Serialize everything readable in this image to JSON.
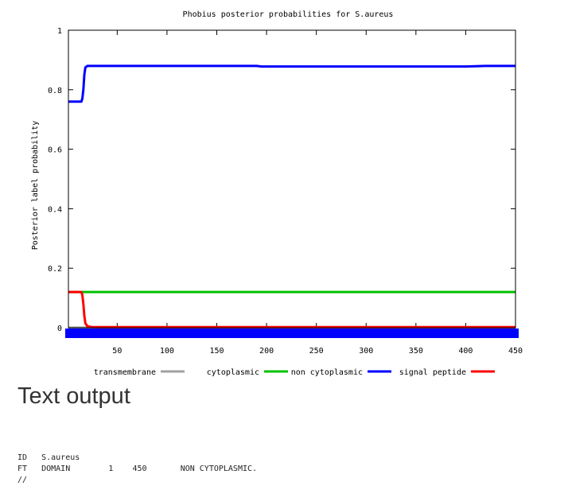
{
  "chart_data": {
    "type": "line",
    "title": "Phobius posterior probabilities for S.aureus",
    "xlabel": "",
    "ylabel": "Posterior label probability",
    "xlim": [
      1,
      450
    ],
    "ylim": [
      0,
      1
    ],
    "xticks": [
      50,
      100,
      150,
      200,
      250,
      300,
      350,
      400,
      450
    ],
    "yticks": [
      0,
      0.2,
      0.4,
      0.6,
      0.8,
      1
    ],
    "ytick_labels": [
      "0",
      "0.2",
      "0.4",
      "0.6",
      "0.8",
      "1"
    ],
    "legend_position": "bottom",
    "series": [
      {
        "name": "transmembrane",
        "color": "#a0a0a0",
        "x": [
          1,
          450
        ],
        "y": [
          0,
          0
        ]
      },
      {
        "name": "cytoplasmic",
        "color": "#00c000",
        "x": [
          1,
          450
        ],
        "y": [
          0.12,
          0.12
        ]
      },
      {
        "name": "non cytoplasmic",
        "color": "#0000ff",
        "x": [
          1,
          14,
          15,
          16,
          17,
          18,
          20,
          25,
          100,
          190,
          195,
          300,
          400,
          420,
          450
        ],
        "y": [
          0.76,
          0.76,
          0.77,
          0.8,
          0.85,
          0.875,
          0.88,
          0.88,
          0.88,
          0.88,
          0.878,
          0.878,
          0.878,
          0.88,
          0.88
        ]
      },
      {
        "name": "signal peptide",
        "color": "#ff0000",
        "x": [
          1,
          14,
          15,
          16,
          17,
          18,
          20,
          25,
          450
        ],
        "y": [
          0.12,
          0.12,
          0.11,
          0.08,
          0.04,
          0.015,
          0.005,
          0.002,
          0.002
        ]
      }
    ],
    "topology_bar": {
      "color": "#0000ff",
      "x": [
        1,
        450
      ]
    }
  },
  "text_output": {
    "heading": "Text output",
    "lines": [
      "ID   S.aureus",
      "FT   DOMAIN        1    450       NON CYTOPLASMIC.",
      "//"
    ]
  }
}
